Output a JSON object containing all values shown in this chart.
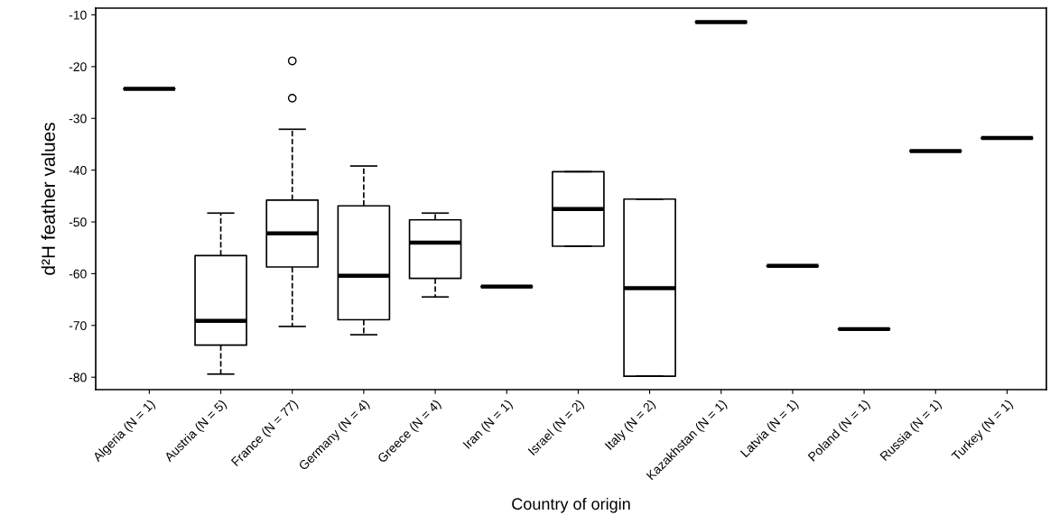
{
  "chart_data": {
    "type": "box",
    "xlabel": "Country of origin",
    "ylabel": "d²H feather values",
    "categories": [
      "Algeria (N = 1)",
      "Austria (N = 5)",
      "France (N = 77)",
      "Germany (N = 4)",
      "Greece (N = 4)",
      "Iran (N = 1)",
      "Israel (N = 2)",
      "Italy (N = 2)",
      "Kazakhstan (N = 1)",
      "Latvia (N = 1)",
      "Poland (N = 1)",
      "Russia (N = 1)",
      "Turkey (N = 1)"
    ],
    "boxes": [
      {
        "low": -24.3,
        "q1": -24.3,
        "median": -24.3,
        "q3": -24.3,
        "high": -24.3
      },
      {
        "low": -79.4,
        "q1": -73.8,
        "median": -69.1,
        "q3": -56.5,
        "high": -48.3
      },
      {
        "low": -70.2,
        "q1": -58.7,
        "median": -52.2,
        "q3": -45.8,
        "high": -32.1,
        "outliers": [
          -26.1,
          -18.9
        ]
      },
      {
        "low": -71.8,
        "q1": -68.9,
        "median": -60.4,
        "q3": -46.9,
        "high": -39.2
      },
      {
        "low": -64.5,
        "q1": -60.9,
        "median": -54.0,
        "q3": -49.6,
        "high": -48.3
      },
      {
        "low": -62.5,
        "q1": -62.5,
        "median": -62.5,
        "q3": -62.5,
        "high": -62.5
      },
      {
        "low": -54.7,
        "q1": -54.7,
        "median": -47.5,
        "q3": -40.3,
        "high": -40.3
      },
      {
        "low": -79.8,
        "q1": -79.8,
        "median": -62.8,
        "q3": -45.6,
        "high": -45.6
      },
      {
        "low": -11.4,
        "q1": -11.4,
        "median": -11.4,
        "q3": -11.4,
        "high": -11.4
      },
      {
        "low": -58.5,
        "q1": -58.5,
        "median": -58.5,
        "q3": -58.5,
        "high": -58.5
      },
      {
        "low": -70.7,
        "q1": -70.7,
        "median": -70.7,
        "q3": -70.7,
        "high": -70.7
      },
      {
        "low": -36.3,
        "q1": -36.3,
        "median": -36.3,
        "q3": -36.3,
        "high": -36.3
      },
      {
        "low": -33.8,
        "q1": -33.8,
        "median": -33.8,
        "q3": -33.8,
        "high": -33.8
      }
    ],
    "ylim": [
      -82.4,
      -8.7
    ],
    "yticks": [
      -80,
      -70,
      -60,
      -50,
      -40,
      -30,
      -20,
      -10
    ],
    "line_style": "dashed",
    "marker": "circle",
    "grid": false
  }
}
